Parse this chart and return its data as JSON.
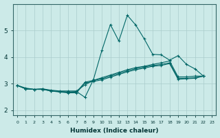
{
  "xlabel": "Humidex (Indice chaleur)",
  "ylabel": "",
  "background_color": "#cceae8",
  "grid_color": "#aacccc",
  "line_color": "#006666",
  "xlim": [
    -0.5,
    23.5
  ],
  "ylim": [
    1.8,
    6.0
  ],
  "xticks": [
    0,
    1,
    2,
    3,
    4,
    5,
    6,
    7,
    8,
    9,
    10,
    11,
    12,
    13,
    14,
    15,
    16,
    17,
    18,
    19,
    20,
    21,
    22,
    23
  ],
  "yticks": [
    2,
    3,
    4,
    5
  ],
  "series": [
    {
      "x": [
        0,
        1,
        2,
        3,
        4,
        5,
        6,
        7,
        8,
        9,
        10,
        11,
        12,
        13,
        14,
        15,
        16,
        17,
        18,
        19,
        20,
        21,
        22
      ],
      "y": [
        2.93,
        2.83,
        2.78,
        2.8,
        2.72,
        2.7,
        2.68,
        2.7,
        2.48,
        3.15,
        4.25,
        5.22,
        4.6,
        5.57,
        5.2,
        4.68,
        4.1,
        4.08,
        3.88,
        4.05,
        3.72,
        3.55,
        3.28
      ]
    },
    {
      "x": [
        0,
        1,
        2,
        3,
        4,
        5,
        6,
        7,
        8,
        9,
        10,
        11,
        12,
        13,
        14,
        15,
        16,
        17,
        18,
        19,
        20,
        21,
        22
      ],
      "y": [
        2.93,
        2.8,
        2.78,
        2.8,
        2.75,
        2.72,
        2.72,
        2.72,
        2.95,
        3.12,
        3.22,
        3.32,
        3.42,
        3.52,
        3.6,
        3.65,
        3.72,
        3.78,
        3.85,
        3.25,
        3.25,
        3.28,
        3.28
      ]
    },
    {
      "x": [
        0,
        1,
        2,
        3,
        4,
        5,
        6,
        7,
        8,
        9,
        10,
        11,
        12,
        13,
        14,
        15,
        16,
        17,
        18,
        19,
        20,
        21,
        22
      ],
      "y": [
        2.93,
        2.8,
        2.78,
        2.78,
        2.72,
        2.7,
        2.68,
        2.68,
        3.05,
        3.12,
        3.18,
        3.28,
        3.38,
        3.48,
        3.56,
        3.62,
        3.68,
        3.72,
        3.78,
        3.2,
        3.2,
        3.22,
        3.28
      ]
    },
    {
      "x": [
        0,
        1,
        2,
        3,
        4,
        5,
        6,
        7,
        8,
        9,
        10,
        11,
        12,
        13,
        14,
        15,
        16,
        17,
        18,
        19,
        20,
        21,
        22
      ],
      "y": [
        2.93,
        2.8,
        2.78,
        2.78,
        2.72,
        2.68,
        2.65,
        2.65,
        3.02,
        3.08,
        3.14,
        3.24,
        3.34,
        3.44,
        3.52,
        3.58,
        3.65,
        3.68,
        3.75,
        3.16,
        3.18,
        3.2,
        3.28
      ]
    }
  ]
}
